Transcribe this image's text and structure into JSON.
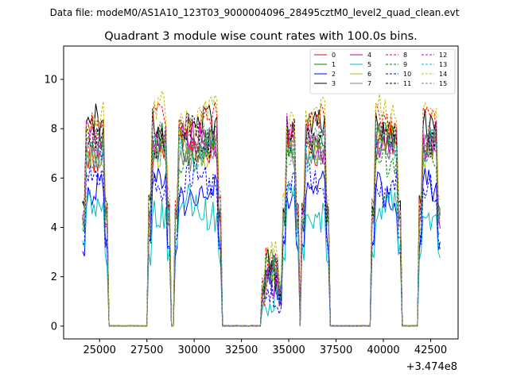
{
  "chart_data": {
    "type": "line",
    "suptitle": "Data file: modeM0/AS1A10_123T03_9000004096_28495cztM0_level2_quad_clean.evt",
    "title": "Quadrant 3 module wise count rates with 100.0s bins.",
    "xlabel": "",
    "ylabel": "",
    "x_offset_label": "+3.474e8",
    "xlim": [
      23100,
      43950
    ],
    "ylim": [
      -0.52,
      11.35
    ],
    "x_ticks": [
      25000,
      27500,
      30000,
      32500,
      35000,
      37500,
      40000,
      42500
    ],
    "x_tick_labels": [
      "25000",
      "27500",
      "30000",
      "32500",
      "35000",
      "37500",
      "40000",
      "42500"
    ],
    "y_ticks": [
      0,
      2,
      4,
      6,
      8,
      10
    ],
    "y_tick_labels": [
      "0",
      "2",
      "4",
      "6",
      "8",
      "10"
    ],
    "grid": false,
    "legend_position": "top-right",
    "segments": [
      {
        "start": 24100,
        "end": 25400
      },
      {
        "start": 27600,
        "end": 28700
      },
      {
        "start": 29000,
        "end": 31400
      },
      {
        "start": 33600,
        "end": 34600
      },
      {
        "start": 34700,
        "end": 35500
      },
      {
        "start": 35700,
        "end": 37100
      },
      {
        "start": 39400,
        "end": 40900
      },
      {
        "start": 41900,
        "end": 43000
      }
    ],
    "series": [
      {
        "name": "0",
        "color": "#ff0000",
        "style": "solid",
        "level": 7.2
      },
      {
        "name": "1",
        "color": "#008000",
        "style": "solid",
        "level": 7.4
      },
      {
        "name": "2",
        "color": "#0000ff",
        "style": "solid",
        "level": 5.4
      },
      {
        "name": "3",
        "color": "#000000",
        "style": "solid",
        "level": 8.0
      },
      {
        "name": "4",
        "color": "#bf00bf",
        "style": "solid",
        "level": 7.5
      },
      {
        "name": "5",
        "color": "#00bfbf",
        "style": "solid",
        "level": 4.8
      },
      {
        "name": "6",
        "color": "#bfbf00",
        "style": "solid",
        "level": 7.3
      },
      {
        "name": "7",
        "color": "#808080",
        "style": "solid",
        "level": 7.1
      },
      {
        "name": "8",
        "color": "#ff0000",
        "style": "dashed",
        "level": 8.1
      },
      {
        "name": "9",
        "color": "#008000",
        "style": "dashed",
        "level": 7.0
      },
      {
        "name": "10",
        "color": "#0000ff",
        "style": "dashed",
        "level": 5.8
      },
      {
        "name": "11",
        "color": "#000000",
        "style": "dashed",
        "level": 7.7
      },
      {
        "name": "12",
        "color": "#bf00bf",
        "style": "dashed",
        "level": 7.6
      },
      {
        "name": "13",
        "color": "#00bfbf",
        "style": "dashed",
        "level": 7.2
      },
      {
        "name": "14",
        "color": "#bfbf00",
        "style": "dashed",
        "level": 8.5
      },
      {
        "name": "15",
        "color": "#808080",
        "style": "dashed",
        "level": 7.4
      }
    ]
  }
}
